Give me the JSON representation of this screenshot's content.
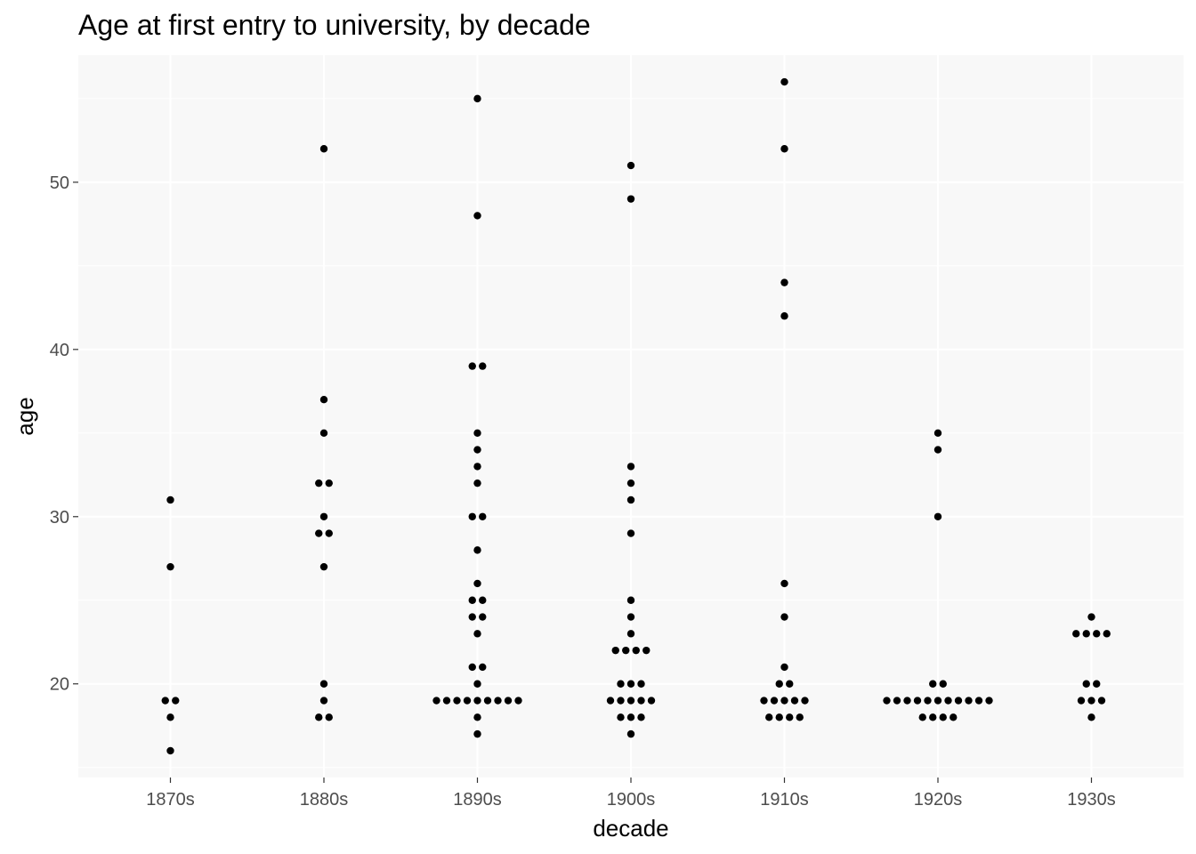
{
  "chart_data": {
    "type": "scatter",
    "title": "Age at first entry to university, by decade",
    "xlabel": "decade",
    "ylabel": "age",
    "categories": [
      "1870s",
      "1880s",
      "1890s",
      "1900s",
      "1910s",
      "1920s",
      "1930s"
    ],
    "ylim": [
      14.4,
      57.6
    ],
    "yticks": [
      20,
      30,
      40,
      50
    ],
    "grid": true,
    "legend": "none",
    "points": {
      "1870s": [
        16,
        18,
        19,
        19,
        27,
        31
      ],
      "1880s": [
        18,
        18,
        19,
        20,
        27,
        29,
        29,
        30,
        32,
        32,
        35,
        37,
        52
      ],
      "1890s": [
        17,
        18,
        19,
        19,
        19,
        19,
        19,
        19,
        19,
        19,
        19,
        20,
        21,
        21,
        23,
        24,
        24,
        25,
        25,
        26,
        28,
        30,
        30,
        32,
        33,
        34,
        35,
        39,
        39,
        48,
        55
      ],
      "1900s": [
        17,
        18,
        18,
        18,
        19,
        19,
        19,
        19,
        19,
        20,
        20,
        20,
        22,
        22,
        22,
        22,
        23,
        24,
        25,
        29,
        31,
        32,
        33,
        49,
        51
      ],
      "1910s": [
        18,
        18,
        18,
        18,
        19,
        19,
        19,
        19,
        19,
        20,
        20,
        21,
        24,
        26,
        42,
        44,
        52,
        56
      ],
      "1920s": [
        18,
        18,
        18,
        18,
        19,
        19,
        19,
        19,
        19,
        19,
        19,
        19,
        19,
        19,
        19,
        20,
        20,
        30,
        34,
        35
      ],
      "1930s": [
        18,
        19,
        19,
        19,
        20,
        20,
        23,
        23,
        23,
        23,
        24
      ]
    }
  }
}
